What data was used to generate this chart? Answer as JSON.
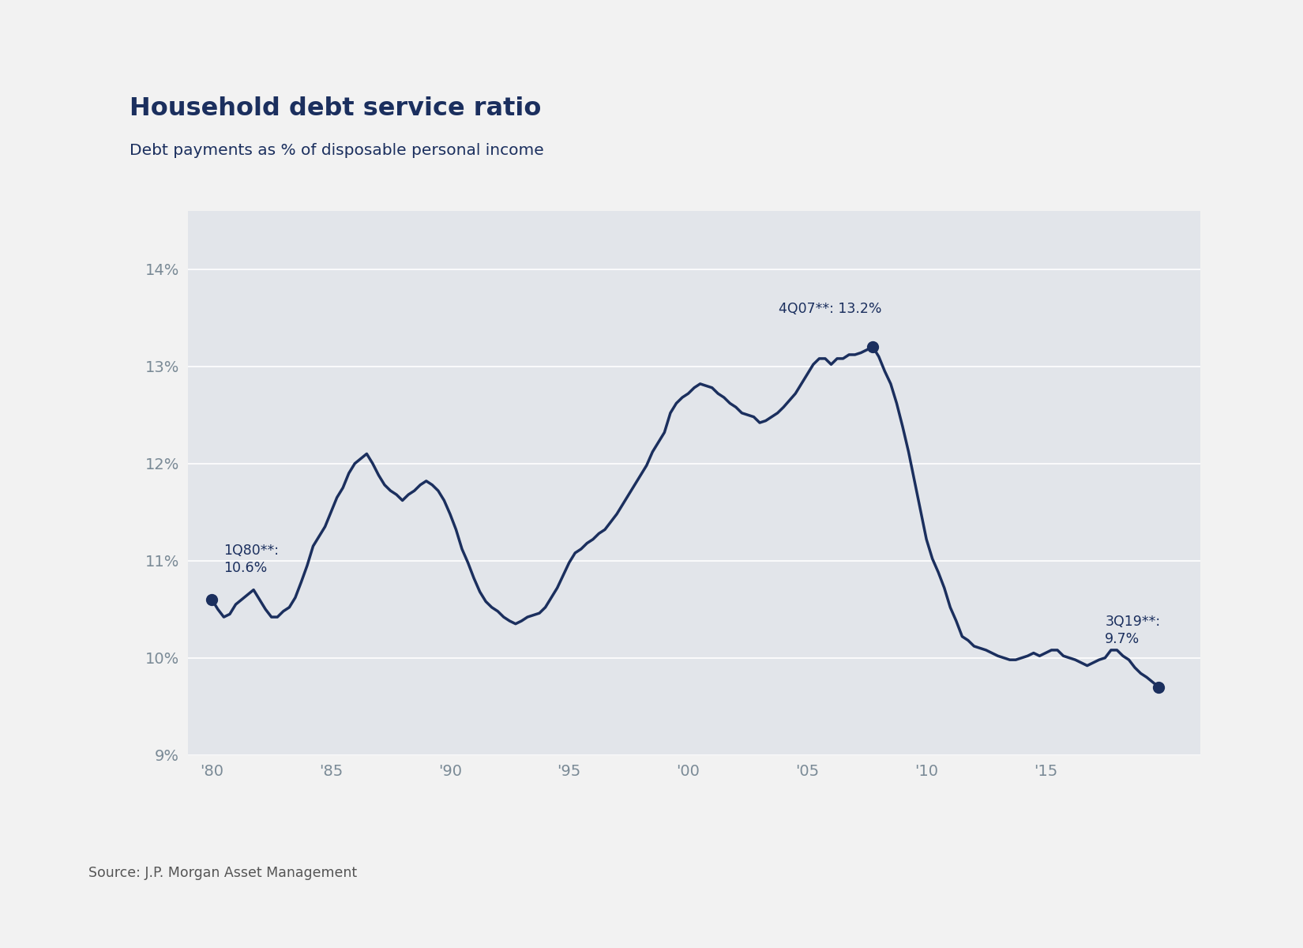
{
  "title": "Household debt service ratio",
  "subtitle": "Debt payments as % of disposable personal income",
  "source": "Source: J.P. Morgan Asset Management",
  "line_color": "#1b2f5e",
  "panel_bg": "#e2e5ea",
  "outer_bg": "#f2f2f2",
  "axis_tick_color": "#7a8a96",
  "title_color": "#1b2f5e",
  "subtitle_color": "#1b2f5e",
  "grid_color": "#ffffff",
  "ylim": [
    9.0,
    14.6
  ],
  "yticks": [
    9,
    10,
    11,
    12,
    13,
    14
  ],
  "ytick_labels": [
    "9%",
    "10%",
    "11%",
    "12%",
    "13%",
    "14%"
  ],
  "xtick_labels": [
    "'80",
    "'85",
    "'90",
    "'95",
    "'00",
    "'05",
    "'10",
    "'15"
  ],
  "xtick_positions": [
    1980,
    1985,
    1990,
    1995,
    2000,
    2005,
    2010,
    2015
  ],
  "xlim": [
    1979.0,
    2021.5
  ],
  "data": [
    [
      1980.0,
      10.6
    ],
    [
      1980.25,
      10.5
    ],
    [
      1980.5,
      10.42
    ],
    [
      1980.75,
      10.45
    ],
    [
      1981.0,
      10.55
    ],
    [
      1981.25,
      10.6
    ],
    [
      1981.5,
      10.65
    ],
    [
      1981.75,
      10.7
    ],
    [
      1982.0,
      10.6
    ],
    [
      1982.25,
      10.5
    ],
    [
      1982.5,
      10.42
    ],
    [
      1982.75,
      10.42
    ],
    [
      1983.0,
      10.48
    ],
    [
      1983.25,
      10.52
    ],
    [
      1983.5,
      10.62
    ],
    [
      1983.75,
      10.78
    ],
    [
      1984.0,
      10.95
    ],
    [
      1984.25,
      11.15
    ],
    [
      1984.5,
      11.25
    ],
    [
      1984.75,
      11.35
    ],
    [
      1985.0,
      11.5
    ],
    [
      1985.25,
      11.65
    ],
    [
      1985.5,
      11.75
    ],
    [
      1985.75,
      11.9
    ],
    [
      1986.0,
      12.0
    ],
    [
      1986.25,
      12.05
    ],
    [
      1986.5,
      12.1
    ],
    [
      1986.75,
      12.0
    ],
    [
      1987.0,
      11.88
    ],
    [
      1987.25,
      11.78
    ],
    [
      1987.5,
      11.72
    ],
    [
      1987.75,
      11.68
    ],
    [
      1988.0,
      11.62
    ],
    [
      1988.25,
      11.68
    ],
    [
      1988.5,
      11.72
    ],
    [
      1988.75,
      11.78
    ],
    [
      1989.0,
      11.82
    ],
    [
      1989.25,
      11.78
    ],
    [
      1989.5,
      11.72
    ],
    [
      1989.75,
      11.62
    ],
    [
      1990.0,
      11.48
    ],
    [
      1990.25,
      11.32
    ],
    [
      1990.5,
      11.12
    ],
    [
      1990.75,
      10.98
    ],
    [
      1991.0,
      10.82
    ],
    [
      1991.25,
      10.68
    ],
    [
      1991.5,
      10.58
    ],
    [
      1991.75,
      10.52
    ],
    [
      1992.0,
      10.48
    ],
    [
      1992.25,
      10.42
    ],
    [
      1992.5,
      10.38
    ],
    [
      1992.75,
      10.35
    ],
    [
      1993.0,
      10.38
    ],
    [
      1993.25,
      10.42
    ],
    [
      1993.5,
      10.44
    ],
    [
      1993.75,
      10.46
    ],
    [
      1994.0,
      10.52
    ],
    [
      1994.25,
      10.62
    ],
    [
      1994.5,
      10.72
    ],
    [
      1994.75,
      10.85
    ],
    [
      1995.0,
      10.98
    ],
    [
      1995.25,
      11.08
    ],
    [
      1995.5,
      11.12
    ],
    [
      1995.75,
      11.18
    ],
    [
      1996.0,
      11.22
    ],
    [
      1996.25,
      11.28
    ],
    [
      1996.5,
      11.32
    ],
    [
      1996.75,
      11.4
    ],
    [
      1997.0,
      11.48
    ],
    [
      1997.25,
      11.58
    ],
    [
      1997.5,
      11.68
    ],
    [
      1997.75,
      11.78
    ],
    [
      1998.0,
      11.88
    ],
    [
      1998.25,
      11.98
    ],
    [
      1998.5,
      12.12
    ],
    [
      1998.75,
      12.22
    ],
    [
      1999.0,
      12.32
    ],
    [
      1999.25,
      12.52
    ],
    [
      1999.5,
      12.62
    ],
    [
      1999.75,
      12.68
    ],
    [
      2000.0,
      12.72
    ],
    [
      2000.25,
      12.78
    ],
    [
      2000.5,
      12.82
    ],
    [
      2000.75,
      12.8
    ],
    [
      2001.0,
      12.78
    ],
    [
      2001.25,
      12.72
    ],
    [
      2001.5,
      12.68
    ],
    [
      2001.75,
      12.62
    ],
    [
      2002.0,
      12.58
    ],
    [
      2002.25,
      12.52
    ],
    [
      2002.5,
      12.5
    ],
    [
      2002.75,
      12.48
    ],
    [
      2003.0,
      12.42
    ],
    [
      2003.25,
      12.44
    ],
    [
      2003.5,
      12.48
    ],
    [
      2003.75,
      12.52
    ],
    [
      2004.0,
      12.58
    ],
    [
      2004.25,
      12.65
    ],
    [
      2004.5,
      12.72
    ],
    [
      2004.75,
      12.82
    ],
    [
      2005.0,
      12.92
    ],
    [
      2005.25,
      13.02
    ],
    [
      2005.5,
      13.08
    ],
    [
      2005.75,
      13.08
    ],
    [
      2006.0,
      13.02
    ],
    [
      2006.25,
      13.08
    ],
    [
      2006.5,
      13.08
    ],
    [
      2006.75,
      13.12
    ],
    [
      2007.0,
      13.12
    ],
    [
      2007.25,
      13.14
    ],
    [
      2007.5,
      13.17
    ],
    [
      2007.75,
      13.2
    ],
    [
      2008.0,
      13.1
    ],
    [
      2008.25,
      12.95
    ],
    [
      2008.5,
      12.82
    ],
    [
      2008.75,
      12.62
    ],
    [
      2009.0,
      12.38
    ],
    [
      2009.25,
      12.12
    ],
    [
      2009.5,
      11.82
    ],
    [
      2009.75,
      11.52
    ],
    [
      2010.0,
      11.22
    ],
    [
      2010.25,
      11.02
    ],
    [
      2010.5,
      10.88
    ],
    [
      2010.75,
      10.72
    ],
    [
      2011.0,
      10.52
    ],
    [
      2011.25,
      10.38
    ],
    [
      2011.5,
      10.22
    ],
    [
      2011.75,
      10.18
    ],
    [
      2012.0,
      10.12
    ],
    [
      2012.25,
      10.1
    ],
    [
      2012.5,
      10.08
    ],
    [
      2012.75,
      10.05
    ],
    [
      2013.0,
      10.02
    ],
    [
      2013.25,
      10.0
    ],
    [
      2013.5,
      9.98
    ],
    [
      2013.75,
      9.98
    ],
    [
      2014.0,
      10.0
    ],
    [
      2014.25,
      10.02
    ],
    [
      2014.5,
      10.05
    ],
    [
      2014.75,
      10.02
    ],
    [
      2015.0,
      10.05
    ],
    [
      2015.25,
      10.08
    ],
    [
      2015.5,
      10.08
    ],
    [
      2015.75,
      10.02
    ],
    [
      2016.0,
      10.0
    ],
    [
      2016.25,
      9.98
    ],
    [
      2016.5,
      9.95
    ],
    [
      2016.75,
      9.92
    ],
    [
      2017.0,
      9.95
    ],
    [
      2017.25,
      9.98
    ],
    [
      2017.5,
      10.0
    ],
    [
      2017.75,
      10.08
    ],
    [
      2018.0,
      10.08
    ],
    [
      2018.25,
      10.02
    ],
    [
      2018.5,
      9.98
    ],
    [
      2018.75,
      9.9
    ],
    [
      2019.0,
      9.84
    ],
    [
      2019.25,
      9.8
    ],
    [
      2019.5,
      9.75
    ],
    [
      2019.75,
      9.7
    ]
  ]
}
